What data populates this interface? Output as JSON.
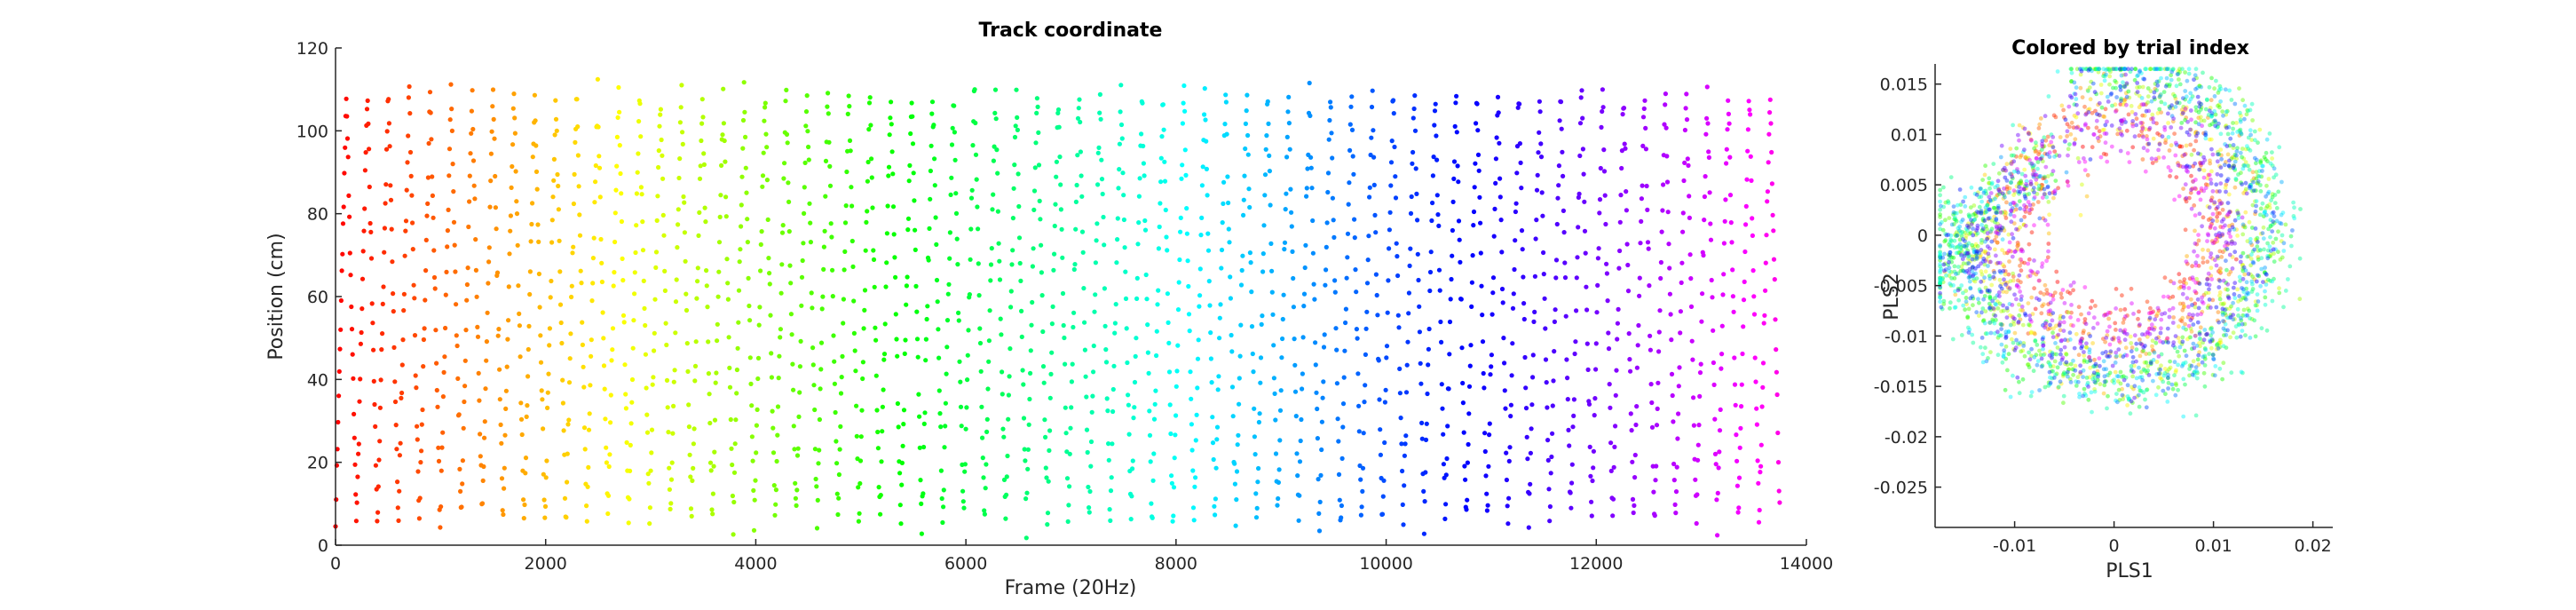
{
  "chart_data": [
    {
      "type": "scatter",
      "title": "Track coordinate",
      "xlabel": "Frame (20Hz)",
      "ylabel": "Position (cm)",
      "xlim": [
        0,
        14000
      ],
      "ylim": [
        0,
        120
      ],
      "xticks": [
        0,
        2000,
        4000,
        6000,
        8000,
        10000,
        12000,
        14000
      ],
      "yticks": [
        0,
        20,
        40,
        60,
        80,
        100,
        120
      ],
      "xtick_labels": [
        "0",
        "2000",
        "4000",
        "6000",
        "8000",
        "10000",
        "12000",
        "14000"
      ],
      "ytick_labels": [
        "0",
        "20",
        "40",
        "60",
        "80",
        "100",
        "120"
      ],
      "colormap": "hsv",
      "n_frames": 13750,
      "n_laps": 69,
      "lap_duration_frames": 190,
      "position_min": 5,
      "position_max": 110,
      "grid": false,
      "legend": "none"
    },
    {
      "type": "scatter",
      "title": "Colored by trial index",
      "xlabel": "PLS1",
      "ylabel": "PLS2",
      "xlim": [
        -0.018,
        0.022
      ],
      "ylim": [
        -0.029,
        0.017
      ],
      "xticks": [
        -0.01,
        0,
        0.01,
        0.02
      ],
      "yticks": [
        -0.025,
        -0.02,
        -0.015,
        -0.01,
        -0.005,
        0,
        0.005,
        0.01,
        0.015
      ],
      "xtick_labels": [
        "-0.01",
        "0",
        "0.01",
        "0.02"
      ],
      "ytick_labels": [
        "-0.025",
        "-0.02",
        "-0.015",
        "-0.01",
        "-0.005",
        "0",
        "0.005",
        "0.01",
        "0.015"
      ],
      "colormap": "hsv",
      "n_trials": 69,
      "grid": false,
      "legend": "none"
    }
  ]
}
